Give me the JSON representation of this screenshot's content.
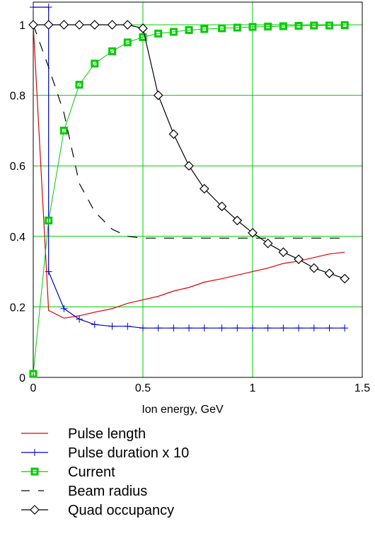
{
  "chart_data": {
    "type": "line",
    "title": "",
    "xlabel": "Ion energy, GeV",
    "ylabel": "",
    "xlim": [
      0,
      1.5
    ],
    "ylim": [
      0,
      1.0
    ],
    "x_ticks": [
      "0",
      "0.5",
      "1",
      "1.5"
    ],
    "y_ticks": [
      "0",
      "0.2",
      "0.4",
      "0.6",
      "0.8",
      "1"
    ],
    "grid": true,
    "grid_color": "#00cc00",
    "legend_position": "bottom",
    "series": [
      {
        "name": "Pulse length",
        "color": "#e00000",
        "style": "line",
        "x": [
          0,
          0.07,
          0.14,
          0.21,
          0.28,
          0.36,
          0.43,
          0.5,
          0.57,
          0.64,
          0.71,
          0.78,
          0.86,
          0.93,
          1.0,
          1.07,
          1.14,
          1.21,
          1.28,
          1.35,
          1.42
        ],
        "y": [
          1.0,
          0.19,
          0.168,
          0.175,
          0.185,
          0.195,
          0.21,
          0.22,
          0.23,
          0.245,
          0.255,
          0.27,
          0.28,
          0.29,
          0.3,
          0.31,
          0.323,
          0.33,
          0.34,
          0.35,
          0.355
        ]
      },
      {
        "name": "Pulse duration x 10",
        "color": "#0000cc",
        "style": "plus",
        "x": [
          0,
          0.07,
          0.07,
          0.14,
          0.21,
          0.28,
          0.36,
          0.43,
          0.5,
          0.57,
          0.64,
          0.71,
          0.78,
          0.86,
          0.93,
          1.0,
          1.07,
          1.14,
          1.21,
          1.28,
          1.35,
          1.42
        ],
        "y": [
          1.05,
          1.05,
          0.3,
          0.195,
          0.165,
          0.15,
          0.145,
          0.145,
          0.14,
          0.14,
          0.14,
          0.14,
          0.14,
          0.14,
          0.14,
          0.14,
          0.14,
          0.14,
          0.14,
          0.14,
          0.14,
          0.14
        ]
      },
      {
        "name": "Current",
        "color": "#00cc00",
        "style": "square",
        "x": [
          0,
          0.07,
          0.14,
          0.21,
          0.28,
          0.36,
          0.43,
          0.5,
          0.57,
          0.64,
          0.71,
          0.78,
          0.86,
          0.93,
          1.0,
          1.07,
          1.14,
          1.21,
          1.28,
          1.35,
          1.42
        ],
        "y": [
          0.01,
          0.445,
          0.7,
          0.83,
          0.89,
          0.925,
          0.95,
          0.965,
          0.975,
          0.98,
          0.985,
          0.988,
          0.99,
          0.992,
          0.994,
          0.995,
          0.996,
          0.997,
          0.998,
          0.998,
          0.999
        ]
      },
      {
        "name": "Beam radius",
        "color": "#000000",
        "style": "dashed",
        "x": [
          0,
          0.07,
          0.14,
          0.21,
          0.28,
          0.36,
          0.43,
          0.5,
          0.57,
          0.64,
          0.71,
          0.78,
          0.86,
          0.93,
          1.0,
          1.07,
          1.14,
          1.21,
          1.28,
          1.35,
          1.42
        ],
        "y": [
          1.0,
          0.88,
          0.75,
          0.55,
          0.47,
          0.42,
          0.4,
          0.395,
          0.395,
          0.395,
          0.395,
          0.395,
          0.395,
          0.395,
          0.395,
          0.395,
          0.395,
          0.395,
          0.395,
          0.395,
          0.395
        ]
      },
      {
        "name": "Quad occupancy",
        "color": "#000000",
        "style": "diamond",
        "x": [
          0,
          0.07,
          0.14,
          0.21,
          0.28,
          0.36,
          0.43,
          0.5,
          0.57,
          0.64,
          0.71,
          0.78,
          0.86,
          0.93,
          1.0,
          1.07,
          1.14,
          1.21,
          1.28,
          1.35,
          1.42
        ],
        "y": [
          1.0,
          1.0,
          1.0,
          1.0,
          1.0,
          1.0,
          1.0,
          0.99,
          0.8,
          0.69,
          0.6,
          0.535,
          0.485,
          0.445,
          0.41,
          0.38,
          0.355,
          0.335,
          0.31,
          0.295,
          0.28
        ]
      }
    ]
  }
}
